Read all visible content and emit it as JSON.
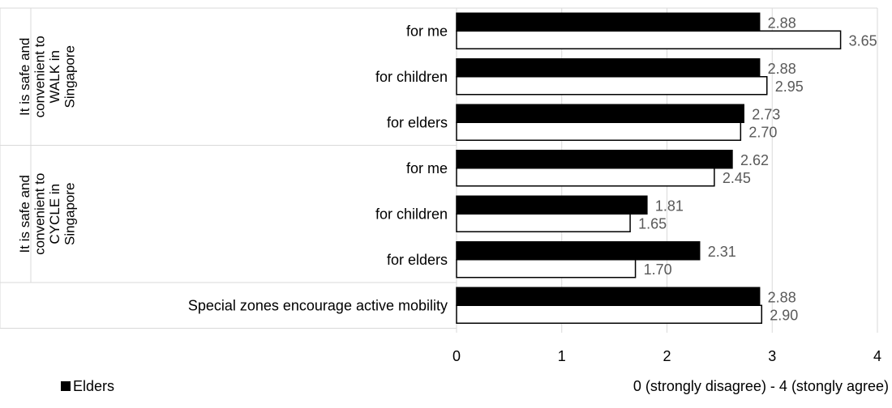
{
  "chart_data": {
    "type": "bar",
    "orientation": "horizontal",
    "groups": [
      {
        "label": "It is safe and convenient to WALK in Singapore",
        "label_lines": [
          "It is safe and",
          "convenient to",
          "WALK in",
          "Singapore"
        ],
        "categories": [
          "for me",
          "for children",
          "for elders"
        ]
      },
      {
        "label": "It is safe and convenient to CYCLE in Singapore",
        "label_lines": [
          "It is safe and",
          "convenient to",
          "CYCLE in",
          "Singapore"
        ],
        "categories": [
          "for me",
          "for children",
          "for elders"
        ]
      },
      {
        "label": "",
        "label_lines": [],
        "categories": [
          "Special zones encourage active mobility"
        ]
      }
    ],
    "series": [
      {
        "name": "Elders",
        "fill": "#000000",
        "values": [
          2.88,
          2.88,
          2.73,
          2.62,
          1.81,
          2.31,
          2.88
        ],
        "labels": [
          "2.88",
          "2.88",
          "2.73",
          "2.62",
          "1.81",
          "2.31",
          "2.88"
        ]
      },
      {
        "name": "",
        "fill": "#ffffff",
        "values": [
          3.65,
          2.95,
          2.7,
          2.45,
          1.65,
          1.7,
          2.9
        ],
        "labels": [
          "3.65",
          "2.95",
          "2.70",
          "2.45",
          "1.65",
          "1.70",
          "2.90"
        ]
      }
    ],
    "xlim": [
      0,
      4
    ],
    "xticks": [
      "0",
      "1",
      "2",
      "3",
      "4"
    ],
    "xlabel": "0 (strongly disagree) - 4 (stongly agree)",
    "legend_position": "bottom-left",
    "grid": true
  },
  "colors": {
    "bar_outline": "#000000",
    "grid": "#d9d9d9",
    "text": "#000000",
    "data_label": "#595959"
  }
}
